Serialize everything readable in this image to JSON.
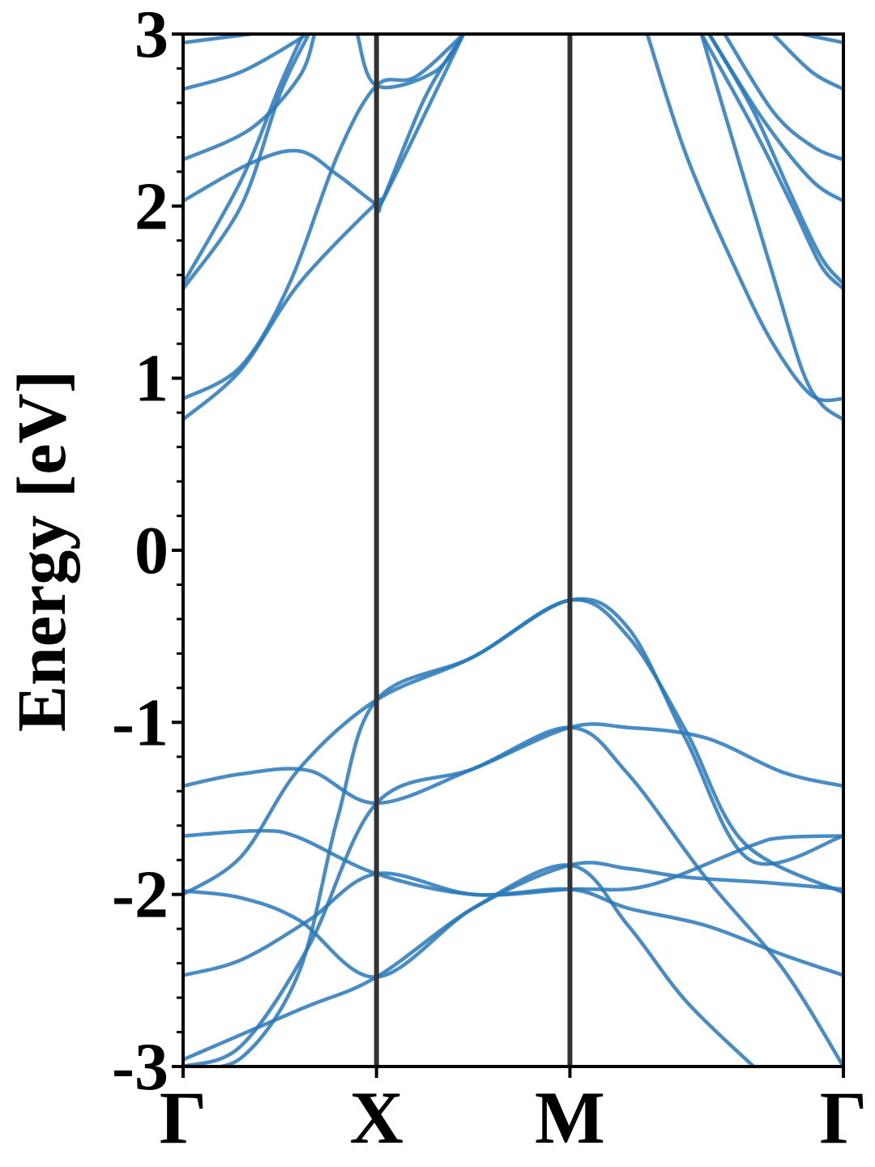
{
  "chart_data": {
    "type": "line",
    "title": "",
    "xlabel": "",
    "ylabel": "Energy [eV]",
    "ylim": [
      -3,
      3
    ],
    "y_ticks": [
      {
        "value": 3,
        "label": "3"
      },
      {
        "value": 2,
        "label": "2"
      },
      {
        "value": 1,
        "label": "1"
      },
      {
        "value": 0,
        "label": "0"
      },
      {
        "value": -1,
        "label": "-1"
      },
      {
        "value": -2,
        "label": "-2"
      },
      {
        "value": -3,
        "label": "-3"
      }
    ],
    "y_minor_step": 0.2,
    "k_path": [
      {
        "label": "Γ",
        "position": 0.0
      },
      {
        "label": "X",
        "position": 1.0
      },
      {
        "label": "M",
        "position": 2.0
      },
      {
        "label": "Γ",
        "position": 3.414
      }
    ],
    "xlim": [
      0,
      3.414
    ],
    "grid": false,
    "colors": {
      "bands": "#2878b8",
      "high_symmetry_lines": "#333333"
    },
    "series": [
      {
        "values": [
          [
            0,
            -3.0
          ],
          [
            0.3,
            -2.88
          ],
          [
            0.65,
            -2.3
          ],
          [
            1.0,
            -1.47
          ],
          [
            1.5,
            -1.27
          ],
          [
            2.0,
            -1.03
          ],
          [
            2.3,
            -1.03
          ],
          [
            2.7,
            -1.09
          ],
          [
            3.1,
            -1.29
          ],
          [
            3.414,
            -1.37
          ]
        ]
      },
      {
        "values": [
          [
            0,
            -3.0
          ],
          [
            0.3,
            -2.95
          ],
          [
            0.6,
            -2.45
          ],
          [
            0.8,
            -1.55
          ],
          [
            1.0,
            -0.87
          ],
          [
            1.5,
            -0.62
          ],
          [
            2.0,
            -0.29
          ],
          [
            2.3,
            -0.5
          ],
          [
            2.6,
            -1.05
          ],
          [
            2.9,
            -1.7
          ],
          [
            3.414,
            -1.99
          ]
        ]
      },
      {
        "values": [
          [
            0,
            -2.0
          ],
          [
            0.3,
            -1.78
          ],
          [
            0.6,
            -1.27
          ],
          [
            1.0,
            -0.87
          ],
          [
            1.5,
            -0.62
          ],
          [
            2.0,
            -0.29
          ],
          [
            2.3,
            -0.45
          ],
          [
            2.6,
            -1.1
          ],
          [
            2.93,
            -1.8
          ],
          [
            3.414,
            -1.66
          ]
        ]
      },
      {
        "values": [
          [
            0,
            -2.96
          ],
          [
            0.6,
            -2.67
          ],
          [
            1.0,
            -2.48
          ],
          [
            1.5,
            -2.08
          ],
          [
            2.0,
            -1.83
          ],
          [
            2.3,
            -1.85
          ],
          [
            2.6,
            -1.9
          ],
          [
            3.0,
            -1.93
          ],
          [
            3.414,
            -1.97
          ]
        ]
      },
      {
        "values": [
          [
            0,
            -1.66
          ],
          [
            0.4,
            -1.63
          ],
          [
            0.6,
            -1.67
          ],
          [
            1.0,
            -1.88
          ],
          [
            1.5,
            -2.0
          ],
          [
            2.0,
            -1.97
          ],
          [
            2.4,
            -1.95
          ],
          [
            2.93,
            -1.72
          ],
          [
            3.1,
            -1.67
          ],
          [
            3.414,
            -1.66
          ]
        ]
      },
      {
        "values": [
          [
            0,
            -2.47
          ],
          [
            0.3,
            -2.38
          ],
          [
            0.65,
            -2.15
          ],
          [
            1.0,
            -1.88
          ],
          [
            1.5,
            -2.0
          ],
          [
            2.0,
            -1.97
          ],
          [
            2.3,
            -2.08
          ],
          [
            2.7,
            -2.18
          ],
          [
            3.1,
            -2.35
          ],
          [
            3.414,
            -2.47
          ]
        ]
      },
      {
        "values": [
          [
            0,
            -1.37
          ],
          [
            0.3,
            -1.3
          ],
          [
            0.65,
            -1.28
          ],
          [
            1.0,
            -1.47
          ],
          [
            1.5,
            -1.27
          ],
          [
            2.0,
            -1.03
          ],
          [
            2.3,
            -1.3
          ],
          [
            2.7,
            -1.9
          ],
          [
            3.1,
            -2.43
          ],
          [
            3.414,
            -3.0
          ]
        ]
      },
      {
        "values": [
          [
            0,
            -1.98
          ],
          [
            0.3,
            -2.02
          ],
          [
            0.6,
            -2.15
          ],
          [
            1.0,
            -2.48
          ],
          [
            1.5,
            -2.08
          ],
          [
            2.0,
            -1.83
          ],
          [
            2.3,
            -2.18
          ],
          [
            2.6,
            -2.62
          ],
          [
            2.95,
            -3.0
          ]
        ]
      },
      {
        "values": [
          [
            0,
            0.76
          ],
          [
            0.3,
            1.05
          ],
          [
            0.6,
            1.55
          ],
          [
            1.0,
            2.02
          ],
          [
            1.03,
            2.03
          ],
          [
            1.3,
            2.65
          ],
          [
            1.45,
            3.0
          ]
        ]
      },
      {
        "values": [
          [
            0,
            0.88
          ],
          [
            0.3,
            1.07
          ],
          [
            0.55,
            1.55
          ],
          [
            0.8,
            2.3
          ],
          [
            1.0,
            2.7
          ],
          [
            1.2,
            2.75
          ],
          [
            1.45,
            3.0
          ]
        ]
      },
      {
        "values": [
          [
            0,
            1.52
          ],
          [
            0.3,
            2.0
          ],
          [
            0.5,
            2.65
          ],
          [
            0.65,
            3.0
          ]
        ]
      },
      {
        "values": [
          [
            0,
            1.55
          ],
          [
            0.3,
            2.15
          ],
          [
            0.5,
            2.7
          ],
          [
            0.62,
            3.0
          ]
        ]
      },
      {
        "values": [
          [
            0,
            2.03
          ],
          [
            0.35,
            2.25
          ],
          [
            0.6,
            2.32
          ],
          [
            0.8,
            2.18
          ],
          [
            1.0,
            2.01
          ],
          [
            1.03,
            2.03
          ],
          [
            1.25,
            2.63
          ],
          [
            1.45,
            3.0
          ]
        ]
      },
      {
        "values": [
          [
            0,
            2.27
          ],
          [
            0.35,
            2.45
          ],
          [
            0.6,
            2.75
          ],
          [
            0.68,
            3.0
          ]
        ]
      },
      {
        "values": [
          [
            0,
            2.68
          ],
          [
            0.3,
            2.78
          ],
          [
            0.6,
            2.97
          ],
          [
            0.62,
            3.0
          ]
        ]
      },
      {
        "values": [
          [
            0,
            2.95
          ],
          [
            0.35,
            3.0
          ]
        ]
      },
      {
        "values": [
          [
            0.9,
            3.0
          ],
          [
            1.0,
            2.7
          ],
          [
            1.3,
            2.78
          ],
          [
            1.45,
            3.0
          ]
        ]
      },
      {
        "values": [
          [
            2.4,
            3.0
          ],
          [
            2.6,
            2.3
          ],
          [
            2.85,
            1.65
          ],
          [
            3.05,
            1.2
          ],
          [
            3.25,
            0.9
          ],
          [
            3.414,
            0.88
          ]
        ]
      },
      {
        "values": [
          [
            2.68,
            3.0
          ],
          [
            2.85,
            2.35
          ],
          [
            3.05,
            1.6
          ],
          [
            3.2,
            1.05
          ],
          [
            3.3,
            0.85
          ],
          [
            3.414,
            0.76
          ]
        ]
      },
      {
        "values": [
          [
            2.68,
            3.0
          ],
          [
            2.95,
            2.45
          ],
          [
            3.15,
            2.0
          ],
          [
            3.3,
            1.65
          ],
          [
            3.414,
            1.52
          ]
        ]
      },
      {
        "values": [
          [
            2.72,
            3.0
          ],
          [
            2.95,
            2.55
          ],
          [
            3.15,
            2.05
          ],
          [
            3.3,
            1.7
          ],
          [
            3.414,
            1.55
          ]
        ]
      },
      {
        "values": [
          [
            2.72,
            3.0
          ],
          [
            3.0,
            2.5
          ],
          [
            3.25,
            2.15
          ],
          [
            3.414,
            2.03
          ]
        ]
      },
      {
        "values": [
          [
            2.8,
            3.0
          ],
          [
            3.05,
            2.55
          ],
          [
            3.25,
            2.35
          ],
          [
            3.414,
            2.27
          ]
        ]
      },
      {
        "values": [
          [
            3.05,
            3.0
          ],
          [
            3.25,
            2.78
          ],
          [
            3.414,
            2.68
          ]
        ]
      },
      {
        "values": [
          [
            3.2,
            3.0
          ],
          [
            3.414,
            2.95
          ]
        ]
      }
    ]
  }
}
